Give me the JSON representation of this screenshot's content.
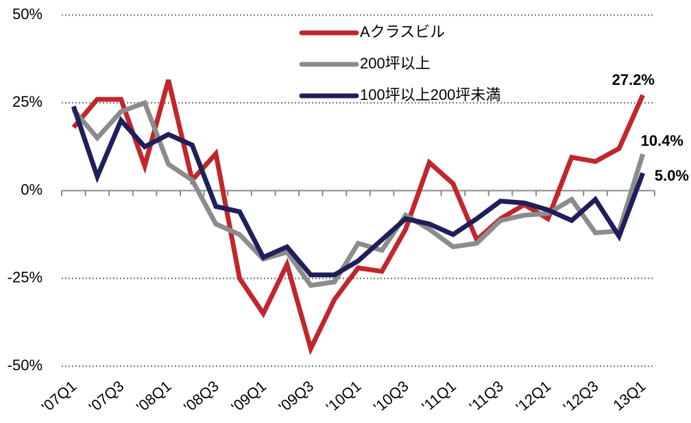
{
  "chart_data": {
    "type": "line",
    "categories": [
      "'07Q1",
      null,
      "'07Q3",
      null,
      "'08Q1",
      null,
      "'08Q3",
      null,
      "'09Q1",
      null,
      "'09Q3",
      null,
      "'10Q1",
      null,
      "'10Q3",
      null,
      "'11Q1",
      null,
      "'11Q3",
      null,
      "'12Q1",
      null,
      "'12Q3",
      null,
      "13Q1"
    ],
    "series": [
      {
        "name": "Aクラスビル",
        "color": "#c0272d",
        "values": [
          18,
          26,
          26,
          7,
          31.5,
          3,
          10.5,
          -25,
          -35,
          -21,
          -45,
          -31,
          -22,
          -23,
          -11,
          8,
          2,
          -14,
          -8,
          -4,
          -8,
          9.5,
          8.3,
          12,
          27.2
        ],
        "value_labels": [
          null,
          null,
          null,
          null,
          null,
          null,
          null,
          null,
          null,
          null,
          null,
          null,
          null,
          null,
          null,
          null,
          null,
          null,
          null,
          null,
          null,
          null,
          null,
          null,
          "27.2%"
        ]
      },
      {
        "name": "200坪以上",
        "color": "#8c8c8c",
        "values": [
          23,
          15,
          22.5,
          25,
          7.5,
          3,
          -9.5,
          -12.5,
          -19.5,
          -17.5,
          -27,
          -26,
          -15,
          -17,
          -7,
          -11,
          -16,
          -15,
          -8.5,
          -7,
          -6.5,
          -2.5,
          -12,
          -11.5,
          10.4
        ],
        "value_labels": [
          null,
          null,
          null,
          null,
          null,
          null,
          null,
          null,
          null,
          null,
          null,
          null,
          null,
          null,
          null,
          null,
          null,
          null,
          null,
          null,
          null,
          null,
          null,
          null,
          "10.4%"
        ]
      },
      {
        "name": "100坪以上200坪未満",
        "color": "#1f1f5c",
        "values": [
          24,
          4,
          20,
          12.5,
          16,
          13,
          -4.5,
          -6,
          -19,
          -16,
          -24,
          -24,
          -20,
          -14,
          -8,
          -9.5,
          -12.5,
          -8,
          -3,
          -3.5,
          -5.5,
          -8.5,
          -2.5,
          -13,
          5.0
        ],
        "value_labels": [
          null,
          null,
          null,
          null,
          null,
          null,
          null,
          null,
          null,
          null,
          null,
          null,
          null,
          null,
          null,
          null,
          null,
          null,
          null,
          null,
          null,
          null,
          null,
          null,
          "5.0%"
        ]
      }
    ],
    "ylim": [
      -50,
      50
    ],
    "yticks": [
      {
        "value": -50,
        "label": "-50%"
      },
      {
        "value": -25,
        "label": "-25%"
      },
      {
        "value": 0,
        "label": "0%"
      },
      {
        "value": 25,
        "label": "25%"
      },
      {
        "value": 50,
        "label": "50%"
      }
    ],
    "grid": true,
    "legend": "top"
  }
}
